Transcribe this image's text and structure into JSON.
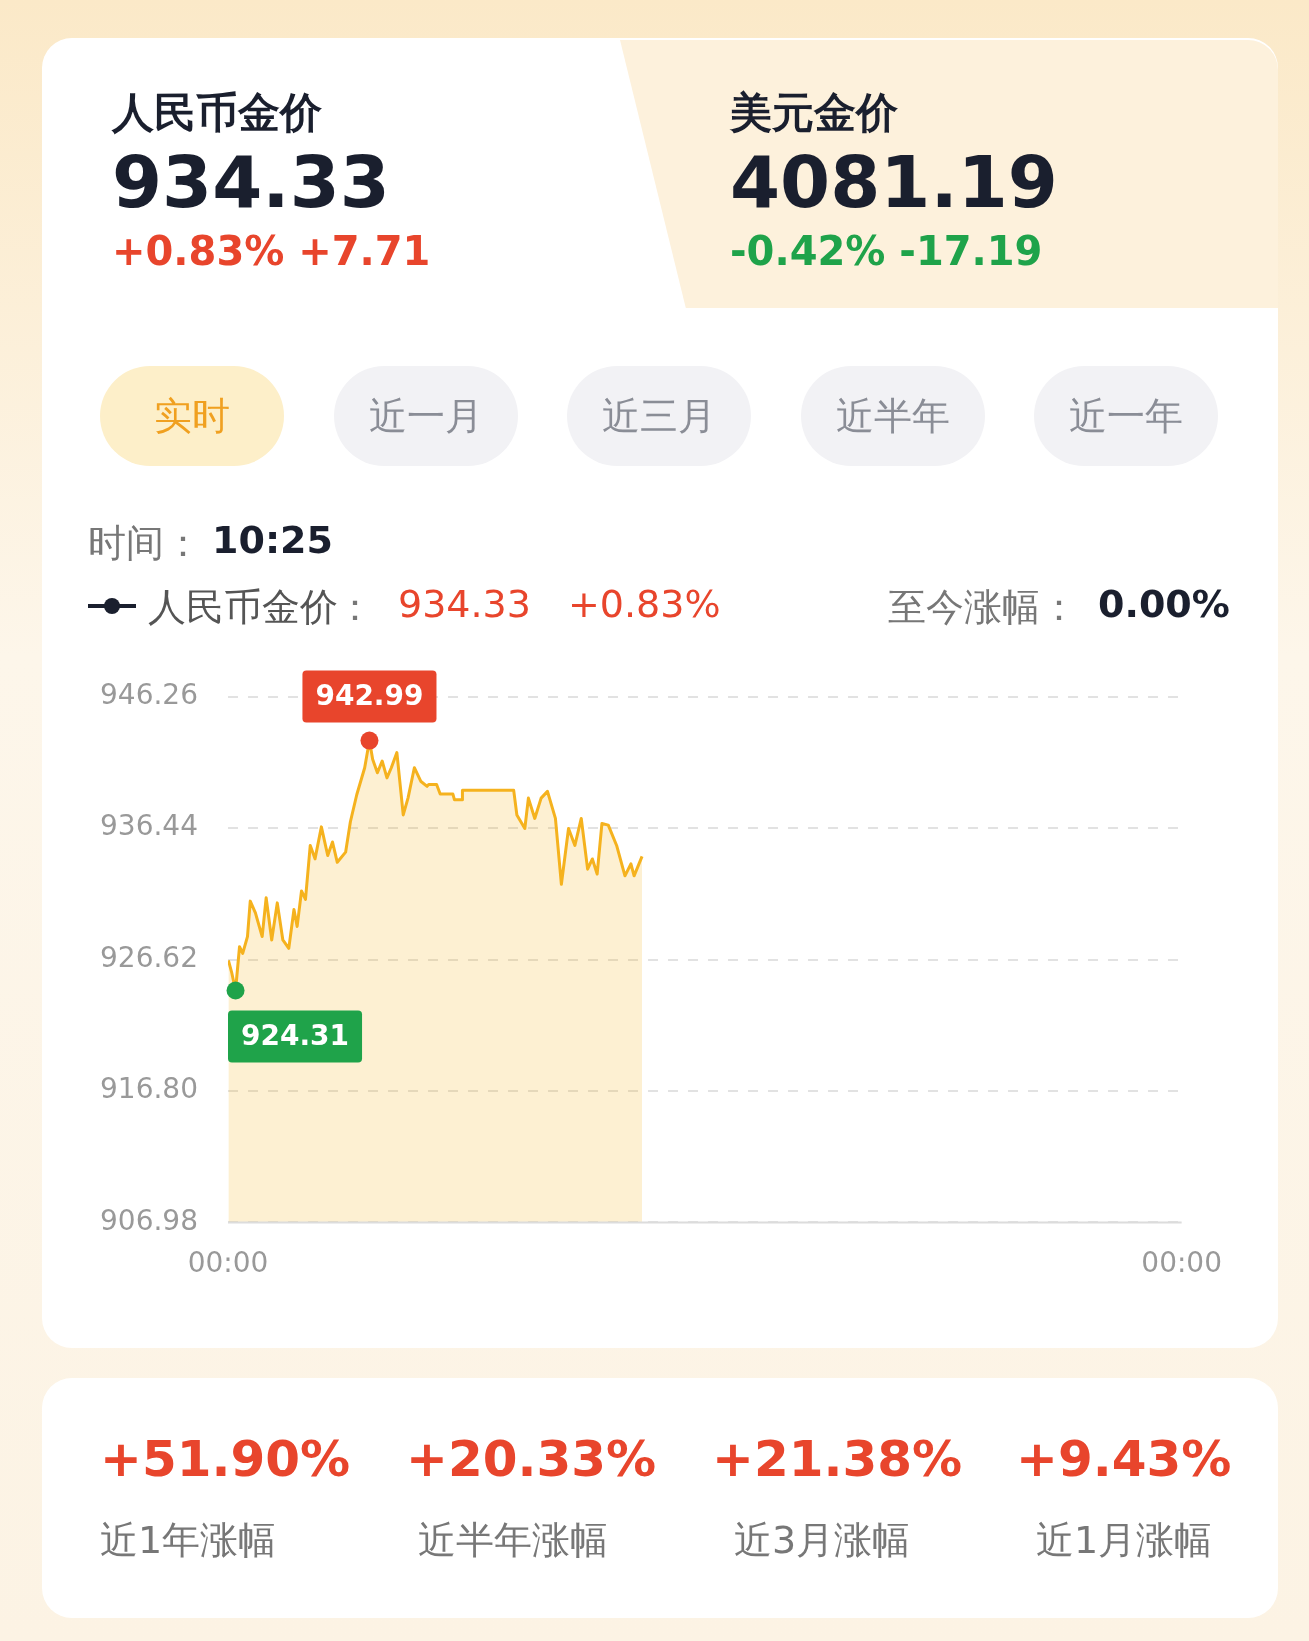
{
  "chart_data": {
    "type": "area",
    "legend": "top left",
    "grid": "y",
    "xlim": [
      0,
      24
    ],
    "ylim": [
      906.98,
      946.26
    ],
    "xticks": [
      {
        "value": 0,
        "label": "00:00"
      },
      {
        "value": 24,
        "label": "00:00"
      }
    ],
    "yticks": [
      906.98,
      {
        "value": 916.8,
        "label": "916.80"
      },
      926.62,
      936.44,
      946.26
    ],
    "series": [
      {
        "name": "人民币金价",
        "color": "#f5b21e",
        "x": [
          0.01,
          0.09,
          0.19,
          0.29,
          0.37,
          0.49,
          0.56,
          0.69,
          0.86,
          0.96,
          1.1,
          1.24,
          1.38,
          1.53,
          1.66,
          1.74,
          1.85,
          1.95,
          2.07,
          2.19,
          2.35,
          2.51,
          2.63,
          2.75,
          2.96,
          3.08,
          3.24,
          3.44,
          3.56,
          3.64,
          3.76,
          3.88,
          4.0,
          4.11,
          4.25,
          4.41,
          4.53,
          4.69,
          4.85,
          5.01,
          5.05,
          5.25,
          5.34,
          5.66,
          5.7,
          5.89,
          5.9,
          7.19,
          7.27,
          7.47,
          7.56,
          7.72,
          7.88,
          8.04,
          8.24,
          8.39,
          8.57,
          8.73,
          8.89,
          9.05,
          9.17,
          9.29,
          9.41,
          9.57,
          9.78,
          9.99,
          10.14,
          10.22,
          10.42
        ],
        "values": [
          926.57,
          925.69,
          924.31,
          927.58,
          927.08,
          928.34,
          930.99,
          930.11,
          928.34,
          931.24,
          928.09,
          930.86,
          928.09,
          927.46,
          930.36,
          929.1,
          931.75,
          931.12,
          935.15,
          934.15,
          936.54,
          934.4,
          935.41,
          933.89,
          934.65,
          936.92,
          938.94,
          940.96,
          942.99,
          941.59,
          940.58,
          941.46,
          940.2,
          940.96,
          942.09,
          937.43,
          938.69,
          940.96,
          939.95,
          939.57,
          939.7,
          939.7,
          938.99,
          938.99,
          938.56,
          938.56,
          939.27,
          939.27,
          937.43,
          936.42,
          938.69,
          937.17,
          938.69,
          939.19,
          937.17,
          932.25,
          936.42,
          935.15,
          937.17,
          933.38,
          934.14,
          933.01,
          936.79,
          936.67,
          935.15,
          932.88,
          933.77,
          932.88,
          934.33
        ]
      }
    ],
    "annotations": [
      "人民币金价",
      "934.33",
      "+0.83% +7.71",
      "美元金价",
      "4081.19",
      "-0.42% -17.19",
      "实时",
      "近一月",
      "近三月",
      "近半年",
      "近一年",
      "时间：",
      "10:25",
      "：",
      "934.33",
      "+0.83%",
      "至今涨幅：",
      "0.00%",
      "+51.90%",
      "近1年涨幅",
      "+20.33%",
      "近半年涨幅",
      "+21.38%",
      "近3月涨幅",
      "+9.43%",
      "近1月涨幅",
      {
        "text": "942.99",
        "x": 3.56,
        "y": 942.99
      },
      {
        "text": "924.31",
        "x": 0.19,
        "y": 924.31
      }
    ]
  }
}
